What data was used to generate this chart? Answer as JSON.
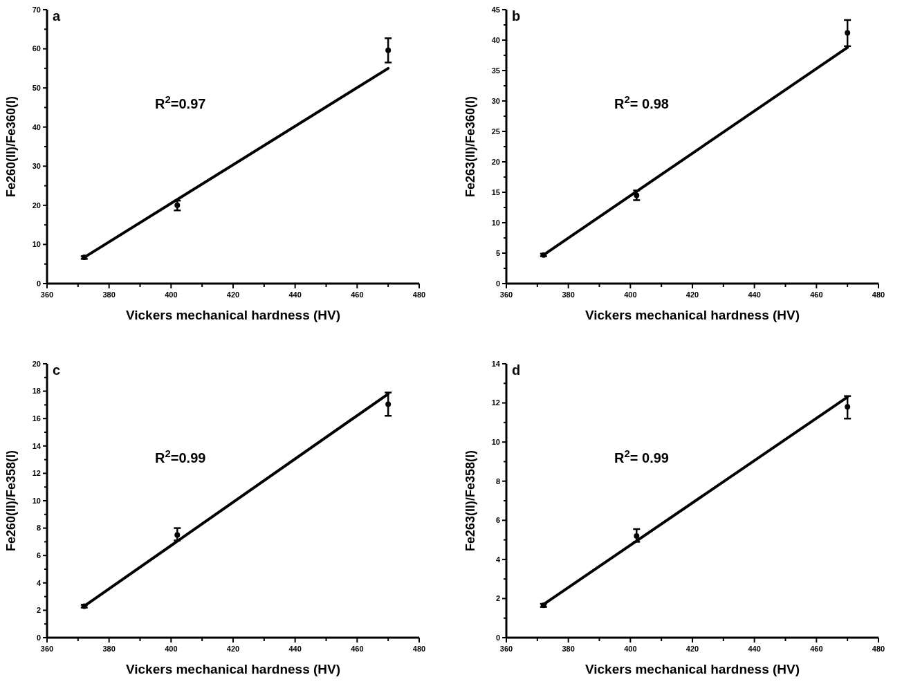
{
  "chart_data": [
    {
      "type": "scatter",
      "title": "a",
      "xlabel": "Vickers mechanical hardness (HV)",
      "ylabel": "Fe260(II)/Fe360(I)",
      "xlim": [
        360,
        480
      ],
      "xticks": [
        360,
        380,
        400,
        420,
        440,
        460,
        480
      ],
      "ylim": [
        0,
        70
      ],
      "yticks": [
        0,
        10,
        20,
        30,
        40,
        50,
        60,
        70
      ],
      "annotations": [
        "R$^{2}$=0.97"
      ],
      "series": [
        {
          "color": "#000000",
          "marker": "circle",
          "x": [
            372,
            402,
            470
          ],
          "values": [
            6.7,
            20,
            59.6
          ],
          "errors": [
            [
              6.3,
              7.0
            ],
            [
              18.7,
              21.2
            ],
            [
              56.5,
              62.7
            ]
          ]
        },
        {
          "type": "line",
          "color": "#000000",
          "x": [
            372,
            470
          ],
          "values": [
            6.7,
            55
          ]
        }
      ]
    },
    {
      "type": "scatter",
      "title": "b",
      "xlabel": "Vickers mechanical hardness (HV)",
      "ylabel": "Fe263(II)/Fe360(I)",
      "xlim": [
        360,
        480
      ],
      "xticks": [
        360,
        380,
        400,
        420,
        440,
        460,
        480
      ],
      "ylim": [
        0,
        45
      ],
      "yticks": [
        0,
        5,
        10,
        15,
        20,
        25,
        30,
        35,
        40,
        45
      ],
      "annotations": [
        "R$^{2}$= 0.98"
      ],
      "series": [
        {
          "color": "#000000",
          "marker": "circle",
          "x": [
            372,
            402,
            470
          ],
          "values": [
            4.7,
            14.5,
            41.2
          ],
          "errors": [
            [
              4.5,
              4.9
            ],
            [
              13.7,
              15.3
            ],
            [
              39,
              43.3
            ]
          ]
        },
        {
          "type": "line",
          "color": "#000000",
          "x": [
            372,
            470
          ],
          "values": [
            4.7,
            38.8
          ]
        }
      ]
    },
    {
      "type": "scatter",
      "title": "c",
      "xlabel": "Vickers mechanical hardness (HV)",
      "ylabel": "Fe260(II)/Fe358(I)",
      "xlim": [
        360,
        480
      ],
      "xticks": [
        360,
        380,
        400,
        420,
        440,
        460,
        480
      ],
      "ylim": [
        0,
        20
      ],
      "yticks": [
        0,
        2,
        4,
        6,
        8,
        10,
        12,
        14,
        16,
        18,
        20
      ],
      "annotations": [
        "R$^{2}$=0.99"
      ],
      "series": [
        {
          "color": "#000000",
          "marker": "circle",
          "x": [
            372,
            402,
            470
          ],
          "values": [
            2.3,
            7.5,
            17.05
          ],
          "errors": [
            [
              2.2,
              2.4
            ],
            [
              7.1,
              8.0
            ],
            [
              16.2,
              17.9
            ]
          ]
        },
        {
          "type": "line",
          "color": "#000000",
          "x": [
            372,
            470
          ],
          "values": [
            2.3,
            17.8
          ]
        }
      ]
    },
    {
      "type": "scatter",
      "title": "d",
      "xlabel": "Vickers mechanical hardness (HV)",
      "ylabel": "Fe263(II)/Fe358(I)",
      "xlim": [
        360,
        480
      ],
      "xticks": [
        360,
        380,
        400,
        420,
        440,
        460,
        480
      ],
      "ylim": [
        0,
        14
      ],
      "yticks": [
        0,
        2,
        4,
        6,
        8,
        10,
        12,
        14
      ],
      "annotations": [
        "R$^{2}$= 0.99"
      ],
      "series": [
        {
          "color": "#000000",
          "marker": "circle",
          "x": [
            372,
            402,
            470
          ],
          "values": [
            1.65,
            5.2,
            11.8
          ],
          "errors": [
            [
              1.57,
              1.73
            ],
            [
              4.9,
              5.55
            ],
            [
              11.2,
              12.35
            ]
          ]
        },
        {
          "type": "line",
          "color": "#000000",
          "x": [
            372,
            470
          ],
          "values": [
            1.7,
            12.3
          ]
        }
      ]
    }
  ]
}
